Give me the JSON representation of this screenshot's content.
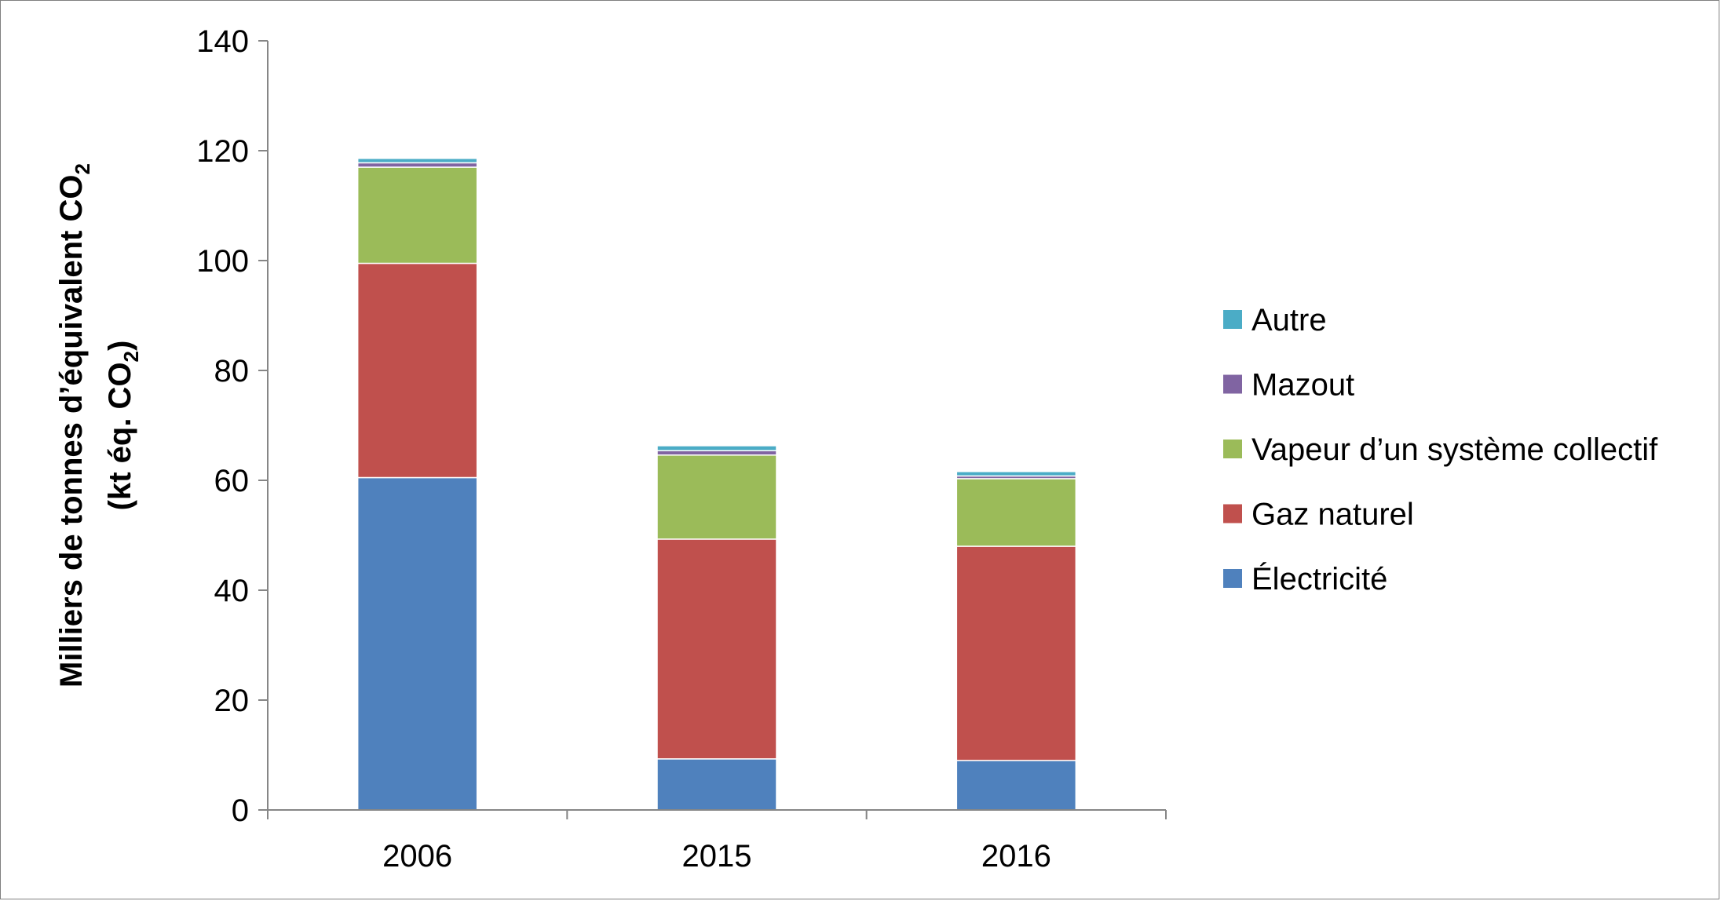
{
  "chart_data": {
    "type": "bar",
    "stacked": true,
    "categories": [
      "2006",
      "2015",
      "2016"
    ],
    "series": [
      {
        "name": "Électricité",
        "color": "#4F81BD",
        "values": [
          60.5,
          9.3,
          9.0
        ]
      },
      {
        "name": "Gaz naturel",
        "color": "#C0504D",
        "values": [
          39.0,
          40.0,
          39.0
        ]
      },
      {
        "name": "Vapeur d’un système collectif",
        "color": "#9BBB59",
        "values": [
          17.5,
          15.3,
          12.3
        ]
      },
      {
        "name": "Mazout",
        "color": "#8064A2",
        "values": [
          0.8,
          0.8,
          0.5
        ]
      },
      {
        "name": "Autre",
        "color": "#4BACC6",
        "values": [
          0.8,
          0.9,
          0.8
        ]
      }
    ],
    "ylabel_line1": "Milliers de tonnes d’équivalent CO",
    "ylabel_line1_sub": "2",
    "ylabel_line2": "(kt éq. CO",
    "ylabel_line2_sub": "2",
    "ylabel_line2_end": ")",
    "ylim": [
      0,
      140
    ],
    "yticks": [
      "0",
      "20",
      "40",
      "60",
      "80",
      "100",
      "120",
      "140"
    ],
    "legend_position": "right",
    "grid": false
  }
}
